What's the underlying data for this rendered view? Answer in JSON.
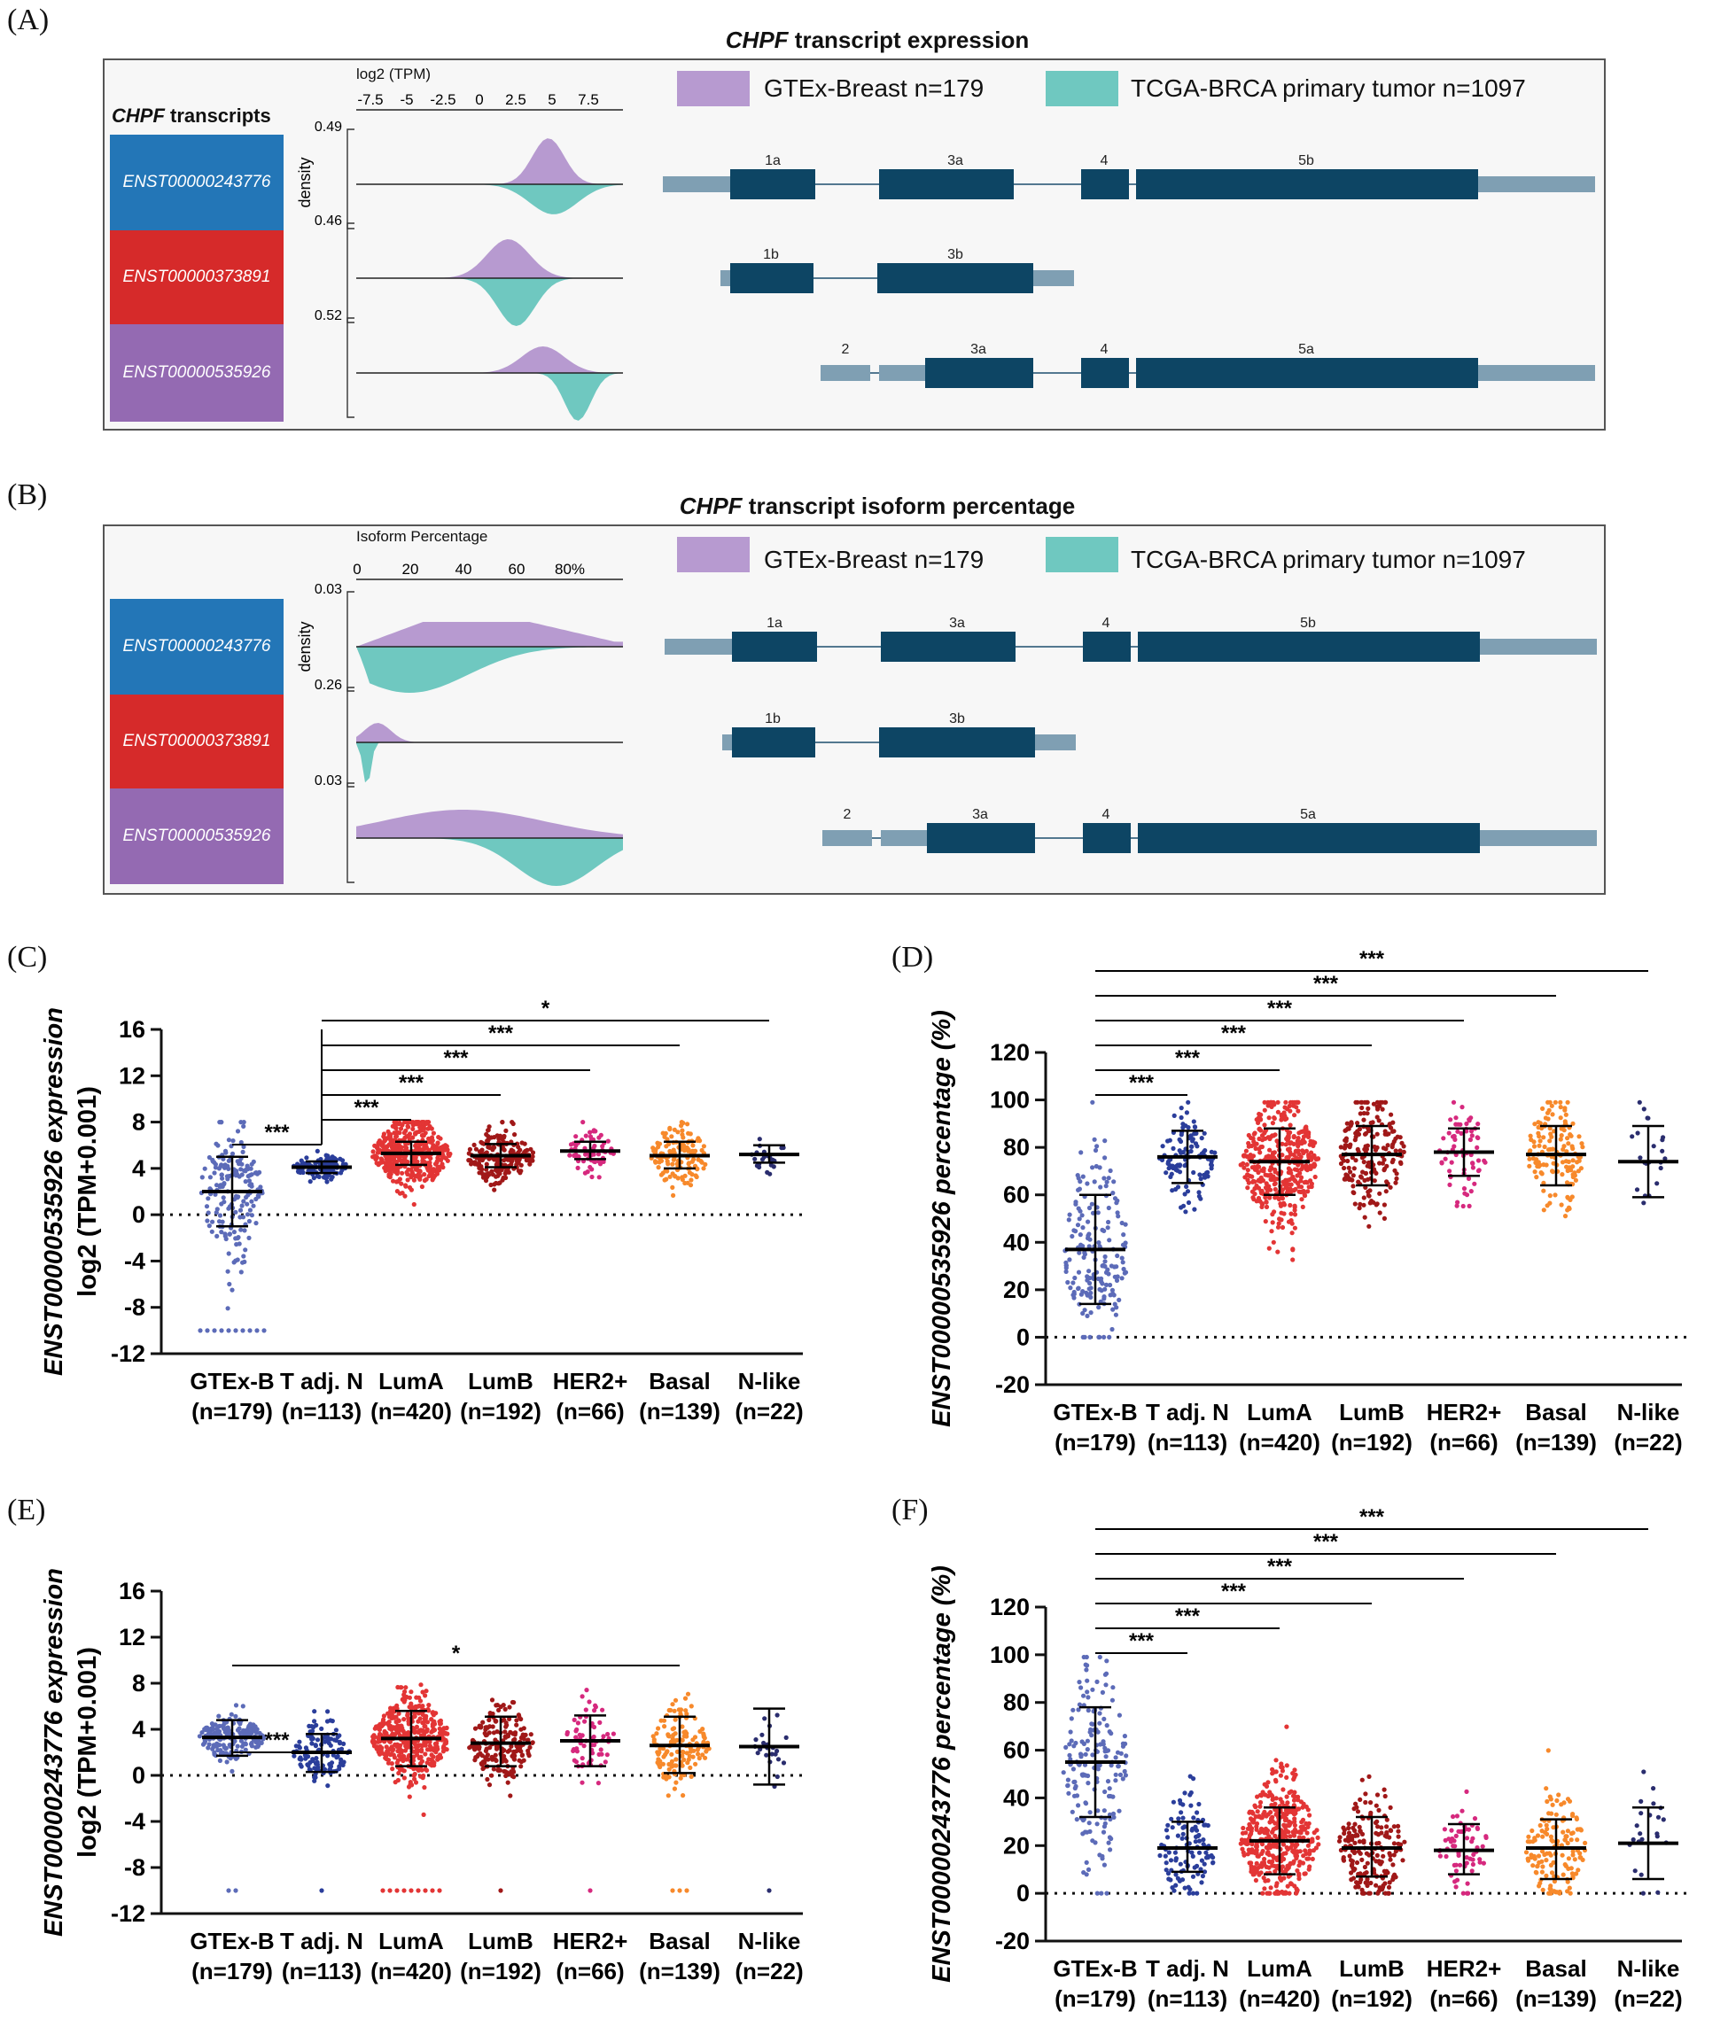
{
  "panels": {
    "A": {
      "label": "(A)",
      "title_gene": "CHPF",
      "title_rest": " transcript expression",
      "axis_title": "log2 (TPM)",
      "axis_ticks": [
        "-7.5",
        "-5",
        "-2.5",
        "0",
        "2.5",
        "5",
        "7.5"
      ],
      "transcripts_gene": "CHPF",
      "transcripts_rest": " transcripts",
      "density_label": "density",
      "density_max": [
        "0.49",
        "0.46",
        "0.52"
      ]
    },
    "B": {
      "label": "(B)",
      "title_gene": "CHPF",
      "title_rest": " transcript isoform percentage",
      "axis_title": "Isoform Percentage",
      "axis_ticks": [
        "0",
        "20",
        "40",
        "60",
        "80%"
      ],
      "density_label": "density",
      "density_max": [
        "0.03",
        "0.26",
        "0.03"
      ]
    },
    "C": {
      "label": "(C)"
    },
    "D": {
      "label": "(D)"
    },
    "E": {
      "label": "(E)"
    },
    "F": {
      "label": "(F)"
    }
  },
  "legend": {
    "gtex": "GTEx-Breast n=179",
    "tcga": "TCGA-BRCA primary tumor n=1097",
    "gtex_color": "#b79ad0",
    "tcga_color": "#6fc8c0"
  },
  "transcripts": [
    {
      "id": "ENST00000243776",
      "color": "#2376b7",
      "exons": [
        "1a",
        "3a",
        "4",
        "5b"
      ]
    },
    {
      "id": "ENST00000373891",
      "color": "#d62a2a",
      "exons": [
        "1b",
        "3b"
      ]
    },
    {
      "id": "ENST00000535926",
      "color": "#946ab2",
      "exons": [
        "2",
        "3a",
        "4",
        "5a"
      ]
    }
  ],
  "chart_data": [
    {
      "id": "C",
      "type": "scatter",
      "ylabel_main": "ENST00000535926 expression",
      "ylabel_sub": "log2 (TPM+0.001)",
      "ylim": [
        -12,
        16
      ],
      "ticks": [
        -12,
        -8,
        -4,
        0,
        4,
        8,
        12,
        16
      ],
      "categories": [
        "GTEx-B",
        "T adj. N",
        "LumA",
        "LumB",
        "HER2+",
        "Basal",
        "N-like"
      ],
      "counts": [
        "(n=179)",
        "(n=113)",
        "(n=420)",
        "(n=192)",
        "(n=66)",
        "(n=139)",
        "(n=22)"
      ],
      "colors": [
        "#5c6bb8",
        "#2b3e9b",
        "#e33535",
        "#a01818",
        "#d6297e",
        "#f7892b",
        "#2a2d6e"
      ],
      "medians": [
        2.0,
        4.1,
        5.3,
        5.1,
        5.5,
        5.1,
        5.2
      ],
      "q_low": [
        -1.0,
        3.6,
        4.3,
        4.1,
        4.8,
        4.0,
        4.5
      ],
      "q_high": [
        5.0,
        4.6,
        6.3,
        6.1,
        6.3,
        6.3,
        6.0
      ],
      "spread": [
        2.8,
        0.6,
        1.5,
        1.2,
        0.9,
        1.3,
        0.8
      ],
      "point_counts": [
        179,
        113,
        420,
        192,
        66,
        139,
        22
      ],
      "outliers": [
        {
          "group": 0,
          "value": -10,
          "n": 10
        },
        {
          "group": 0,
          "value": -6.5,
          "n": 1
        }
      ],
      "significance": [
        {
          "from": 0,
          "to": 1,
          "label": "***"
        },
        {
          "from": 1,
          "to": 2,
          "label": "***"
        },
        {
          "from": 1,
          "to": 3,
          "label": "***"
        },
        {
          "from": 1,
          "to": 4,
          "label": "***"
        },
        {
          "from": 1,
          "to": 5,
          "label": "***"
        },
        {
          "from": 1,
          "to": 6,
          "label": "*"
        }
      ]
    },
    {
      "id": "D",
      "type": "scatter",
      "ylabel_main": "ENST00000535926 percentage (%)",
      "ylabel_sub": "",
      "ylim": [
        -20,
        120
      ],
      "ticks": [
        -20,
        0,
        20,
        40,
        60,
        80,
        100,
        120
      ],
      "categories": [
        "GTEx-B",
        "T adj. N",
        "LumA",
        "LumB",
        "HER2+",
        "Basal",
        "N-like"
      ],
      "counts": [
        "(n=179)",
        "(n=113)",
        "(n=420)",
        "(n=192)",
        "(n=66)",
        "(n=139)",
        "(n=22)"
      ],
      "colors": [
        "#5c6bb8",
        "#2b3e9b",
        "#e33535",
        "#a01818",
        "#d6297e",
        "#f7892b",
        "#2a2d6e"
      ],
      "medians": [
        37,
        76,
        74,
        77,
        78,
        77,
        74
      ],
      "q_low": [
        14,
        65,
        60,
        64,
        68,
        64,
        59
      ],
      "q_high": [
        60,
        87,
        88,
        89,
        88,
        89,
        89
      ],
      "spread": [
        22,
        10,
        14,
        13,
        10,
        12,
        14
      ],
      "point_counts": [
        179,
        113,
        420,
        192,
        66,
        139,
        22
      ],
      "outliers": [],
      "significance": [
        {
          "from": 0,
          "to": 1,
          "label": "***"
        },
        {
          "from": 0,
          "to": 2,
          "label": "***"
        },
        {
          "from": 0,
          "to": 3,
          "label": "***"
        },
        {
          "from": 0,
          "to": 4,
          "label": "***"
        },
        {
          "from": 0,
          "to": 5,
          "label": "***"
        },
        {
          "from": 0,
          "to": 6,
          "label": "***"
        }
      ]
    },
    {
      "id": "E",
      "type": "scatter",
      "ylabel_main": "ENST00000243776 expression",
      "ylabel_sub": "log2 (TPM+0.001)",
      "ylim": [
        -12,
        16
      ],
      "ticks": [
        -12,
        -8,
        -4,
        0,
        4,
        8,
        12,
        16
      ],
      "categories": [
        "GTEx-B",
        "T adj. N",
        "LumA",
        "LumB",
        "HER2+",
        "Basal",
        "N-like"
      ],
      "counts": [
        "(n=179)",
        "(n=113)",
        "(n=420)",
        "(n=192)",
        "(n=66)",
        "(n=139)",
        "(n=22)"
      ],
      "colors": [
        "#5c6bb8",
        "#2b3e9b",
        "#e33535",
        "#a01818",
        "#d6297e",
        "#f7892b",
        "#2a2d6e"
      ],
      "medians": [
        3.3,
        2.0,
        3.2,
        2.8,
        3.0,
        2.6,
        2.5
      ],
      "q_low": [
        1.7,
        0.3,
        0.8,
        0.8,
        0.8,
        0.2,
        -0.8
      ],
      "q_high": [
        4.8,
        3.6,
        5.6,
        5.1,
        5.2,
        5.1,
        5.8
      ],
      "spread": [
        1.0,
        1.2,
        1.8,
        1.6,
        1.6,
        1.8,
        2.0
      ],
      "point_counts": [
        179,
        113,
        420,
        192,
        66,
        139,
        22
      ],
      "outliers": [
        {
          "group": 0,
          "value": -10,
          "n": 2
        },
        {
          "group": 1,
          "value": -10,
          "n": 1
        },
        {
          "group": 2,
          "value": -10,
          "n": 9
        },
        {
          "group": 3,
          "value": -10,
          "n": 1
        },
        {
          "group": 4,
          "value": -10,
          "n": 1
        },
        {
          "group": 5,
          "value": -10,
          "n": 3
        },
        {
          "group": 6,
          "value": -10,
          "n": 1
        }
      ],
      "significance": [
        {
          "from": 0,
          "to": 1,
          "label": "***"
        },
        {
          "from": 0,
          "to": 5,
          "label": "*"
        }
      ]
    },
    {
      "id": "F",
      "type": "scatter",
      "ylabel_main": "ENST00000243776 percentage (%)",
      "ylabel_sub": "",
      "ylim": [
        -20,
        120
      ],
      "ticks": [
        -20,
        0,
        20,
        40,
        60,
        80,
        100,
        120
      ],
      "categories": [
        "GTEx-B",
        "T adj. N",
        "LumA",
        "LumB",
        "HER2+",
        "Basal",
        "N-like"
      ],
      "counts": [
        "(n=179)",
        "(n=113)",
        "(n=420)",
        "(n=192)",
        "(n=66)",
        "(n=139)",
        "(n=22)"
      ],
      "colors": [
        "#5c6bb8",
        "#2b3e9b",
        "#e33535",
        "#a01818",
        "#d6297e",
        "#f7892b",
        "#2a2d6e"
      ],
      "medians": [
        55,
        19,
        22,
        19,
        18,
        19,
        21
      ],
      "q_low": [
        32,
        9,
        8,
        7,
        8,
        6,
        6
      ],
      "q_high": [
        78,
        30,
        36,
        32,
        29,
        31,
        36
      ],
      "spread": [
        21,
        11,
        13,
        12,
        10,
        11,
        13
      ],
      "point_counts": [
        179,
        113,
        420,
        192,
        66,
        139,
        22
      ],
      "outliers": [],
      "significance": [
        {
          "from": 0,
          "to": 1,
          "label": "***"
        },
        {
          "from": 0,
          "to": 2,
          "label": "***"
        },
        {
          "from": 0,
          "to": 3,
          "label": "***"
        },
        {
          "from": 0,
          "to": 4,
          "label": "***"
        },
        {
          "from": 0,
          "to": 5,
          "label": "***"
        },
        {
          "from": 0,
          "to": 6,
          "label": "***"
        }
      ]
    }
  ]
}
